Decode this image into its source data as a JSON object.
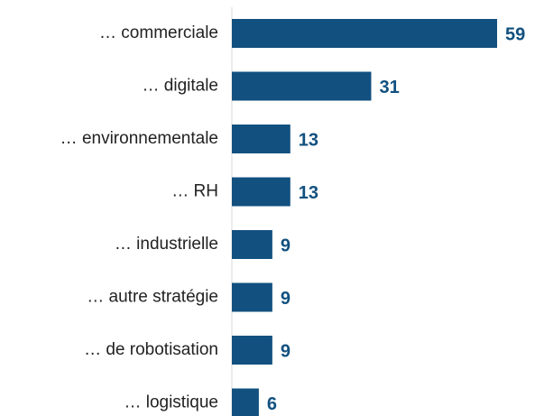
{
  "chart_data": {
    "type": "barh",
    "categories": [
      "… commerciale",
      "… digitale",
      "… environnementale",
      "… RH",
      "… industrielle",
      "… autre stratégie",
      "… de robotisation",
      "… logistique"
    ],
    "values": [
      59,
      31,
      13,
      13,
      9,
      9,
      9,
      6
    ],
    "color": "#11507f"
  }
}
